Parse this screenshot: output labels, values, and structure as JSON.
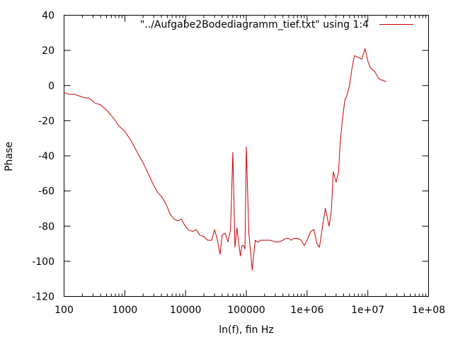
{
  "chart_data": {
    "type": "line",
    "title": "",
    "xlabel": "ln(f), fin Hz",
    "ylabel": "Phase",
    "x_scale": "log",
    "xlim": [
      100,
      100000000
    ],
    "ylim": [
      -120,
      40
    ],
    "grid": false,
    "legend_position": "top-right",
    "x_ticks": [
      100,
      1000,
      10000,
      100000,
      1000000,
      10000000,
      100000000
    ],
    "x_tick_labels": [
      "100",
      "1000",
      "10000",
      "100000",
      "1e+06",
      "1e+07",
      "1e+08"
    ],
    "y_ticks": [
      -120,
      -100,
      -80,
      -60,
      -40,
      -20,
      0,
      20,
      40
    ],
    "y_tick_labels": [
      "-120",
      "-100",
      "-80",
      "-60",
      "-40",
      "-20",
      "0",
      "20",
      "40"
    ],
    "series": [
      {
        "name": "\"../Aufgabe2Bodediagramm_tief.txt\" using 1:4",
        "color": "#cc0000",
        "x": [
          100,
          120,
          150,
          180,
          220,
          250,
          280,
          320,
          400,
          500,
          600,
          700,
          800,
          1000,
          1300,
          1600,
          2000,
          2500,
          3000,
          3500,
          4000,
          4500,
          5000,
          5500,
          6500,
          7500,
          8500,
          9500,
          11000,
          13000,
          15000,
          17000,
          20000,
          23000,
          27000,
          30000,
          33000,
          37000,
          40000,
          45000,
          50000,
          55000,
          60000,
          65000,
          70000,
          75000,
          80000,
          85000,
          90000,
          95000,
          100000,
          110000,
          120000,
          125000,
          130000,
          140000,
          150000,
          160000,
          170000,
          190000,
          210000,
          250000,
          300000,
          350000,
          400000,
          450000,
          500000,
          550000,
          600000,
          700000,
          800000,
          900000,
          1000000,
          1150000,
          1300000,
          1450000,
          1600000,
          1800000,
          2000000,
          2300000,
          2500000,
          2700000,
          3000000,
          3300000,
          3500000,
          3800000,
          4200000,
          4500000,
          5000000,
          5500000,
          6000000,
          7000000,
          8000000,
          9000000,
          10000000,
          11000000,
          12000000,
          13000000,
          15000000,
          17000000,
          18000000,
          20000000
        ],
        "y": [
          -4,
          -5,
          -5,
          -6,
          -7,
          -7,
          -8,
          -10,
          -11,
          -14,
          -17,
          -20,
          -23,
          -26,
          -32,
          -38,
          -44,
          -51,
          -57,
          -61,
          -63,
          -66,
          -69,
          -73,
          -76,
          -77,
          -76,
          -79,
          -82,
          -83,
          -82,
          -85,
          -86,
          -88,
          -88,
          -82,
          -87,
          -96,
          -85,
          -84,
          -89,
          -82,
          -38,
          -92,
          -81,
          -90,
          -97,
          -91,
          -91,
          -93,
          -35,
          -84,
          -98,
          -105,
          -99,
          -88,
          -89,
          -89,
          -88,
          -88,
          -88,
          -88,
          -89,
          -89,
          -88,
          -87,
          -87,
          -88,
          -87,
          -87,
          -88,
          -91,
          -88,
          -83,
          -82,
          -90,
          -92,
          -80,
          -70,
          -80,
          -72,
          -49,
          -55,
          -49,
          -33,
          -20,
          -8,
          -6,
          0,
          10,
          17,
          16,
          15,
          21,
          14,
          10,
          9,
          8,
          4,
          3,
          3,
          2
        ]
      }
    ]
  }
}
